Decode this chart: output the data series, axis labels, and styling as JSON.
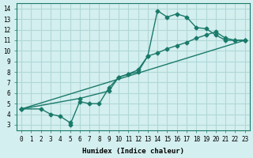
{
  "xlabel": "Humidex (Indice chaleur)",
  "bg_color": "#d4efef",
  "grid_color": "#b0d8d8",
  "line_color": "#1a7a6a",
  "xlim": [
    -0.5,
    23.5
  ],
  "ylim": [
    2.5,
    14.5
  ],
  "xticks": [
    0,
    1,
    2,
    3,
    4,
    5,
    6,
    7,
    8,
    9,
    10,
    11,
    12,
    13,
    14,
    15,
    16,
    17,
    18,
    19,
    20,
    21,
    22,
    23
  ],
  "yticks": [
    3,
    4,
    5,
    6,
    7,
    8,
    9,
    10,
    11,
    12,
    13,
    14
  ],
  "series": [
    {
      "x": [
        0,
        2,
        3,
        4,
        5,
        5,
        6,
        7,
        8,
        9,
        10,
        11,
        12,
        13,
        14,
        15,
        16,
        17,
        18,
        19,
        20,
        21,
        22,
        23
      ],
      "y": [
        4.5,
        4.5,
        4.0,
        3.8,
        3.2,
        3.0,
        5.2,
        5.0,
        5.0,
        6.5,
        7.5,
        7.8,
        8.0,
        9.5,
        13.8,
        13.2,
        13.5,
        13.2,
        12.2,
        12.1,
        11.5,
        11.0,
        11.0,
        11.0
      ]
    },
    {
      "x": [
        0,
        6,
        9,
        10,
        11,
        12,
        13,
        14,
        15,
        16,
        17,
        18,
        19,
        20,
        21,
        22,
        23
      ],
      "y": [
        4.5,
        5.5,
        6.2,
        7.5,
        7.8,
        8.2,
        9.5,
        9.8,
        10.2,
        10.5,
        10.8,
        11.2,
        11.5,
        11.8,
        11.2,
        11.0,
        11.0
      ]
    },
    {
      "x": [
        0,
        23
      ],
      "y": [
        4.5,
        11.0
      ]
    }
  ]
}
